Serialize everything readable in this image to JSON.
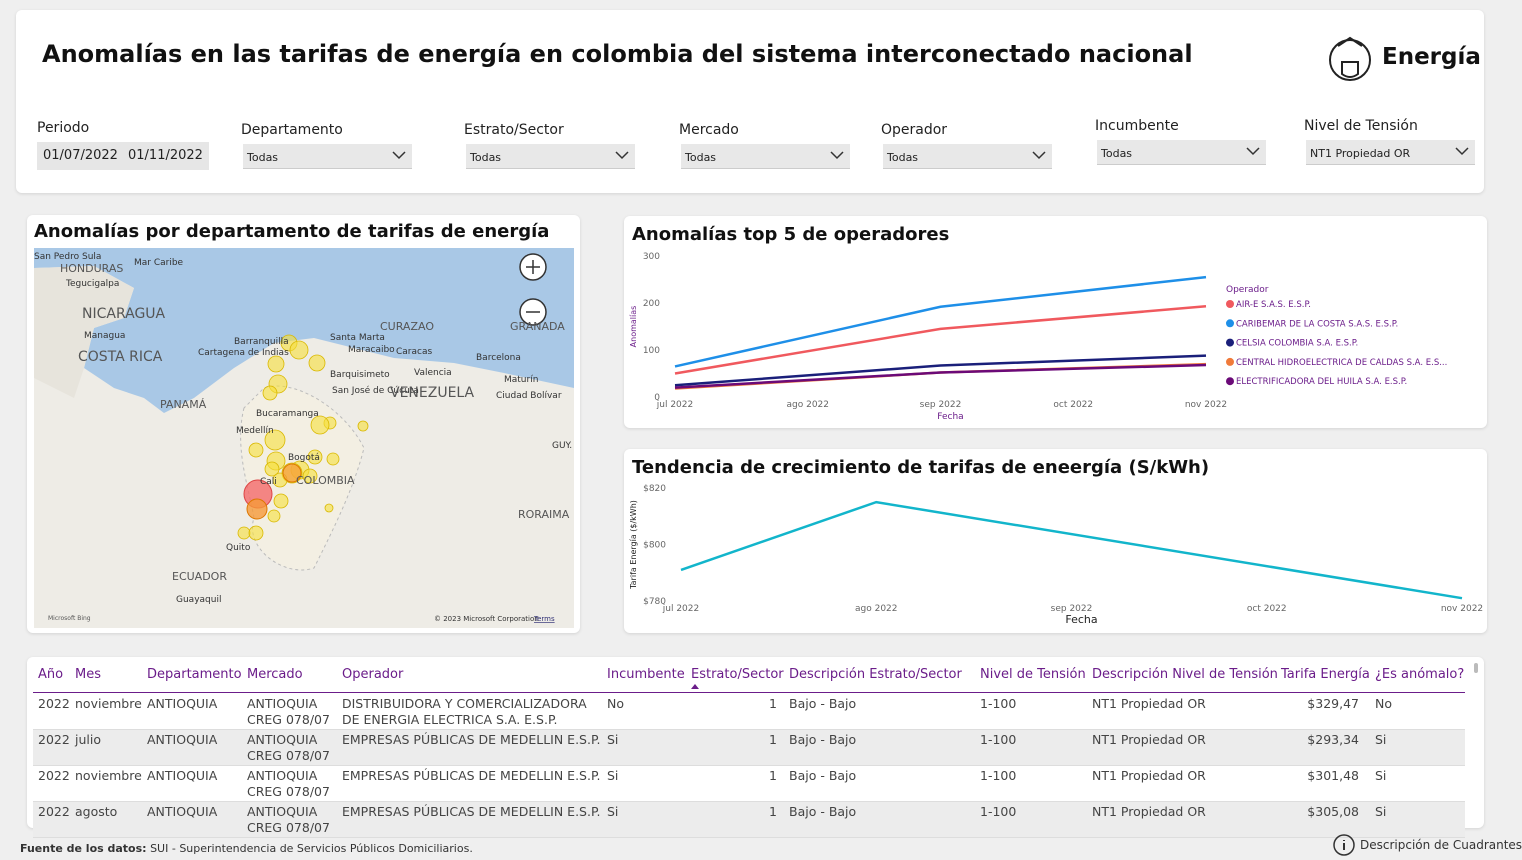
{
  "header": {
    "title": "Anomalías en las tarifas de energía en colombia del sistema interconectado nacional",
    "logo": "Energía"
  },
  "filters": [
    {
      "label": "Periodo",
      "values": [
        "01/07/2022",
        "01/11/2022"
      ]
    },
    {
      "label": "Departamento",
      "values": [
        "Todas"
      ]
    },
    {
      "label": "Estrato/Sector",
      "values": [
        "Todas"
      ]
    },
    {
      "label": "Mercado",
      "values": [
        "Todas"
      ]
    },
    {
      "label": "Operador",
      "values": [
        "Todas"
      ]
    },
    {
      "label": "Incumbente",
      "values": [
        "Todas"
      ]
    },
    {
      "label": "Nivel de Tensión",
      "values": [
        "NT1 Propiedad OR"
      ]
    }
  ],
  "map": {
    "title": "Anomalías por departamento de tarifas de energía",
    "labels": [
      "San Pedro Sula",
      "HONDURAS",
      "Mar Caribe",
      "Tegucigalpa",
      "NICARAGUA",
      "Managua",
      "COSTA RICA",
      "PANAMÁ",
      "Barranquilla",
      "Cartagena de Indias",
      "Santa Marta",
      "Maracaibo",
      "Caracas",
      "Barquisimeto",
      "Valencia",
      "Barcelona",
      "Maturín",
      "Ciudad Bolívar",
      "San José de Cúcuta",
      "VENEZUELA",
      "Bucaramanga",
      "Medellín",
      "Bogotá",
      "Cali",
      "COLOMBIA",
      "RORAIMA",
      "GUY.",
      "Quito",
      "ECUADOR",
      "Guayaquil",
      "CURAZAO",
      "GRANADA"
    ],
    "attribution": "© 2023 Microsoft Corporation",
    "terms": "Terms",
    "brand": "Microsoft Bing"
  },
  "chart_data": [
    {
      "type": "line",
      "title": "Anomalías top 5 de operadores",
      "x_label": "Fecha",
      "y_label": "Anomalías",
      "legend_title": "Operador",
      "legend": "right",
      "xticks": [
        "jul 2022",
        "ago 2022",
        "sep 2022",
        "oct 2022",
        "nov 2022"
      ],
      "x": [
        "jul 2022",
        "sep 2022",
        "nov 2022"
      ],
      "ylim": [
        0,
        300
      ],
      "yticks": [
        0,
        100,
        200,
        300
      ],
      "series": [
        {
          "name": "AIR-E S.A.S. E.S.P.",
          "color": "#f0595e",
          "values": [
            50,
            145,
            193
          ]
        },
        {
          "name": "CARIBEMAR DE LA COSTA S.A.S. E.S.P.",
          "color": "#1e8fe8",
          "values": [
            65,
            192,
            255
          ]
        },
        {
          "name": "CELSIA COLOMBIA S.A. E.S.P.",
          "color": "#1a1f7a",
          "values": [
            25,
            67,
            88
          ]
        },
        {
          "name": "CENTRAL HIDROELECTRICA DE CALDAS S.A. E.S...",
          "color": "#f07a3a",
          "values": [
            18,
            52,
            70
          ]
        },
        {
          "name": "ELECTRIFICADORA DEL HUILA S.A. E.S.P.",
          "color": "#6b0a78",
          "values": [
            20,
            52,
            68
          ]
        }
      ]
    },
    {
      "type": "line",
      "title": "Tendencia de crecimiento de tarifas de eneergía (S/kWh)",
      "x_label": "Fecha",
      "y_label": "Tarifa Energía ($/kWh)",
      "xticks": [
        "jul 2022",
        "ago 2022",
        "sep 2022",
        "oct 2022",
        "nov 2022"
      ],
      "x": [
        "jul 2022",
        "ago 2022",
        "nov 2022"
      ],
      "ylim": [
        780,
        820
      ],
      "yticks": [
        {
          "value": 780,
          "label": "$780"
        },
        {
          "value": 800,
          "label": "$800"
        },
        {
          "value": 820,
          "label": "$820"
        }
      ],
      "series": [
        {
          "color": "#12b5cb",
          "values": [
            791,
            815,
            781
          ]
        }
      ]
    }
  ],
  "table": {
    "columns": [
      "Año",
      "Mes",
      "Departamento",
      "Mercado",
      "Operador",
      "Incumbente",
      "Estrato/Sector",
      "Descripción Estrato/Sector",
      "Nivel de Tensión",
      "Descripción Nivel de Tensión",
      "Tarifa Energía",
      "¿Es anómalo?"
    ],
    "rows": [
      [
        2022,
        "noviembre",
        "ANTIOQUIA",
        "ANTIOQUIA CREG 078/07",
        "DISTRIBUIDORA Y COMERCIALIZADORA DE ENERGIA ELECTRICA S.A. E.S.P.",
        "No",
        1,
        "Bajo - Bajo",
        "1-100",
        "NT1 Propiedad OR",
        "$329,47",
        "No"
      ],
      [
        2022,
        "julio",
        "ANTIOQUIA",
        "ANTIOQUIA CREG 078/07",
        "EMPRESAS PÚBLICAS DE MEDELLIN E.S.P.",
        "Si",
        1,
        "Bajo - Bajo",
        "1-100",
        "NT1 Propiedad OR",
        "$293,34",
        "Si"
      ],
      [
        2022,
        "noviembre",
        "ANTIOQUIA",
        "ANTIOQUIA CREG 078/07",
        "EMPRESAS PÚBLICAS DE MEDELLIN E.S.P.",
        "Si",
        1,
        "Bajo - Bajo",
        "1-100",
        "NT1 Propiedad OR",
        "$301,48",
        "Si"
      ],
      [
        2022,
        "agosto",
        "ANTIOQUIA",
        "ANTIOQUIA CREG 078/07",
        "EMPRESAS PÚBLICAS DE MEDELLIN E.S.P.",
        "Si",
        1,
        "Bajo - Bajo",
        "1-100",
        "NT1 Propiedad OR",
        "$305,08",
        "Si"
      ]
    ]
  },
  "footer": {
    "source_label": "Fuente de los datos:",
    "source": "SUI - Superintendencia de Servicios Públicos Domiciliarios.",
    "help": "Descripción de Cuadrantes"
  }
}
